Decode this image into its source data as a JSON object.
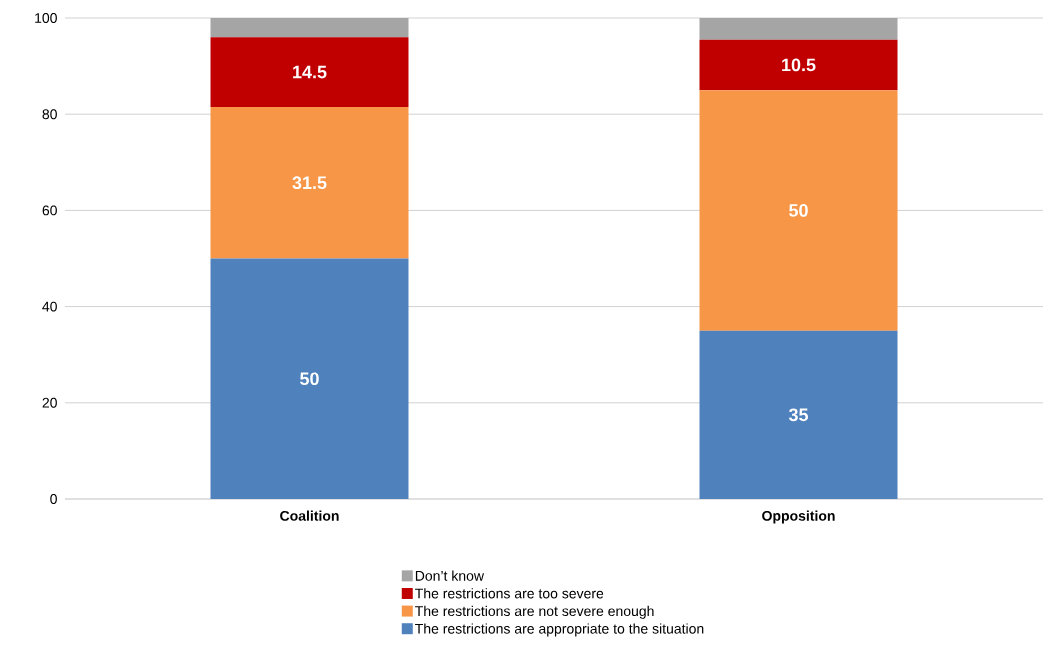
{
  "chart_data": {
    "type": "bar",
    "stacked": true,
    "categories": [
      "Coalition",
      "Opposition"
    ],
    "series": [
      {
        "name": "The restrictions are appropriate to the situation",
        "color": "#4f81bd",
        "values": [
          50,
          35
        ],
        "value_labels": [
          "50",
          "35"
        ]
      },
      {
        "name": "The restrictions are not severe enough",
        "color": "#f79646",
        "values": [
          31.5,
          50
        ],
        "value_labels": [
          "31.5",
          "50"
        ]
      },
      {
        "name": "The restrictions are too severe",
        "color": "#c00000",
        "values": [
          14.5,
          10.5
        ],
        "value_labels": [
          "14.5",
          "10.5"
        ]
      },
      {
        "name": "Don’t know",
        "color": "#a5a5a5",
        "values": [
          4,
          4.5
        ],
        "value_labels": [
          null,
          null
        ]
      }
    ],
    "ylim": [
      0,
      100
    ],
    "yticks": [
      0,
      20,
      40,
      60,
      80,
      100
    ],
    "grid": "y",
    "legend": "bottom"
  }
}
